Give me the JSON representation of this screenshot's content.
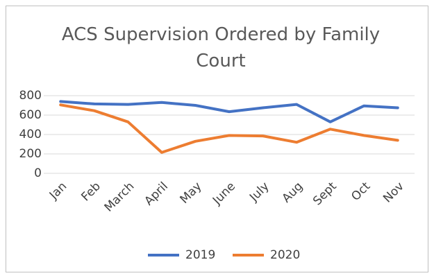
{
  "chart_data": {
    "type": "line",
    "title": "ACS Supervision Ordered by Family Court",
    "categories": [
      "Jan",
      "Feb",
      "March",
      "April",
      "May",
      "June",
      "July",
      "Aug",
      "Sept",
      "Oct",
      "Nov"
    ],
    "series": [
      {
        "name": "2019",
        "color": "#4472c4",
        "values": [
          740,
          715,
          710,
          730,
          700,
          635,
          675,
          710,
          530,
          695,
          675
        ]
      },
      {
        "name": "2020",
        "color": "#ed7d31",
        "values": [
          705,
          645,
          530,
          215,
          330,
          390,
          385,
          320,
          455,
          390,
          340
        ]
      }
    ],
    "ylim": [
      0,
      800
    ],
    "yticks": [
      0,
      200,
      400,
      600,
      800
    ],
    "grid": true,
    "legend": "bottom"
  }
}
